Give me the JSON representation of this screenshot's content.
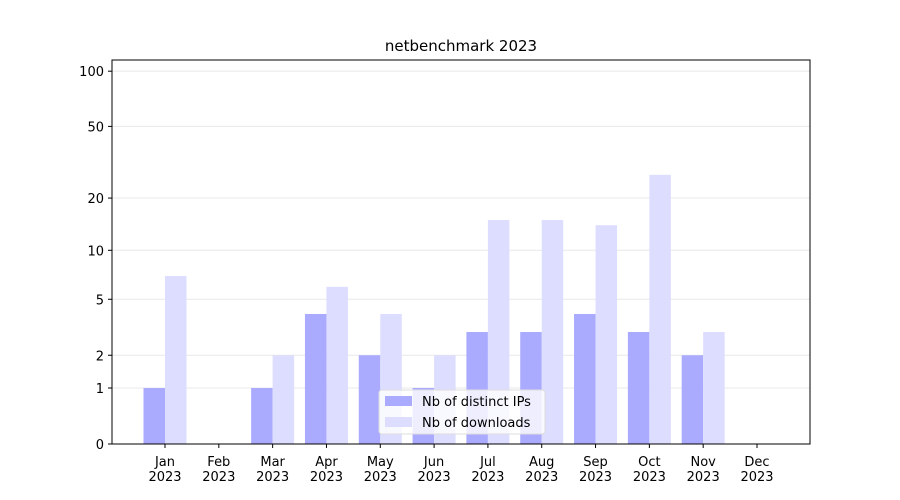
{
  "chart_data": {
    "type": "bar",
    "title": "netbenchmark 2023",
    "categories": [
      "Jan\n2023",
      "Feb\n2023",
      "Mar\n2023",
      "Apr\n2023",
      "May\n2023",
      "Jun\n2023",
      "Jul\n2023",
      "Aug\n2023",
      "Sep\n2023",
      "Oct\n2023",
      "Nov\n2023",
      "Dec\n2023"
    ],
    "series": [
      {
        "name": "Nb of distinct IPs",
        "color": "#aaaaff",
        "values": [
          1,
          0,
          1,
          4,
          2,
          1,
          3,
          3,
          4,
          3,
          2,
          0
        ]
      },
      {
        "name": "Nb of downloads",
        "color": "#ddddff",
        "values": [
          7,
          0,
          2,
          6,
          4,
          2,
          15,
          15,
          14,
          27,
          3,
          0
        ]
      }
    ],
    "yscale": "log1p",
    "ylim": [
      0,
      115
    ],
    "yticks": [
      0,
      1,
      2,
      5,
      10,
      20,
      50,
      100
    ],
    "grid": true,
    "legend": "lower center"
  }
}
